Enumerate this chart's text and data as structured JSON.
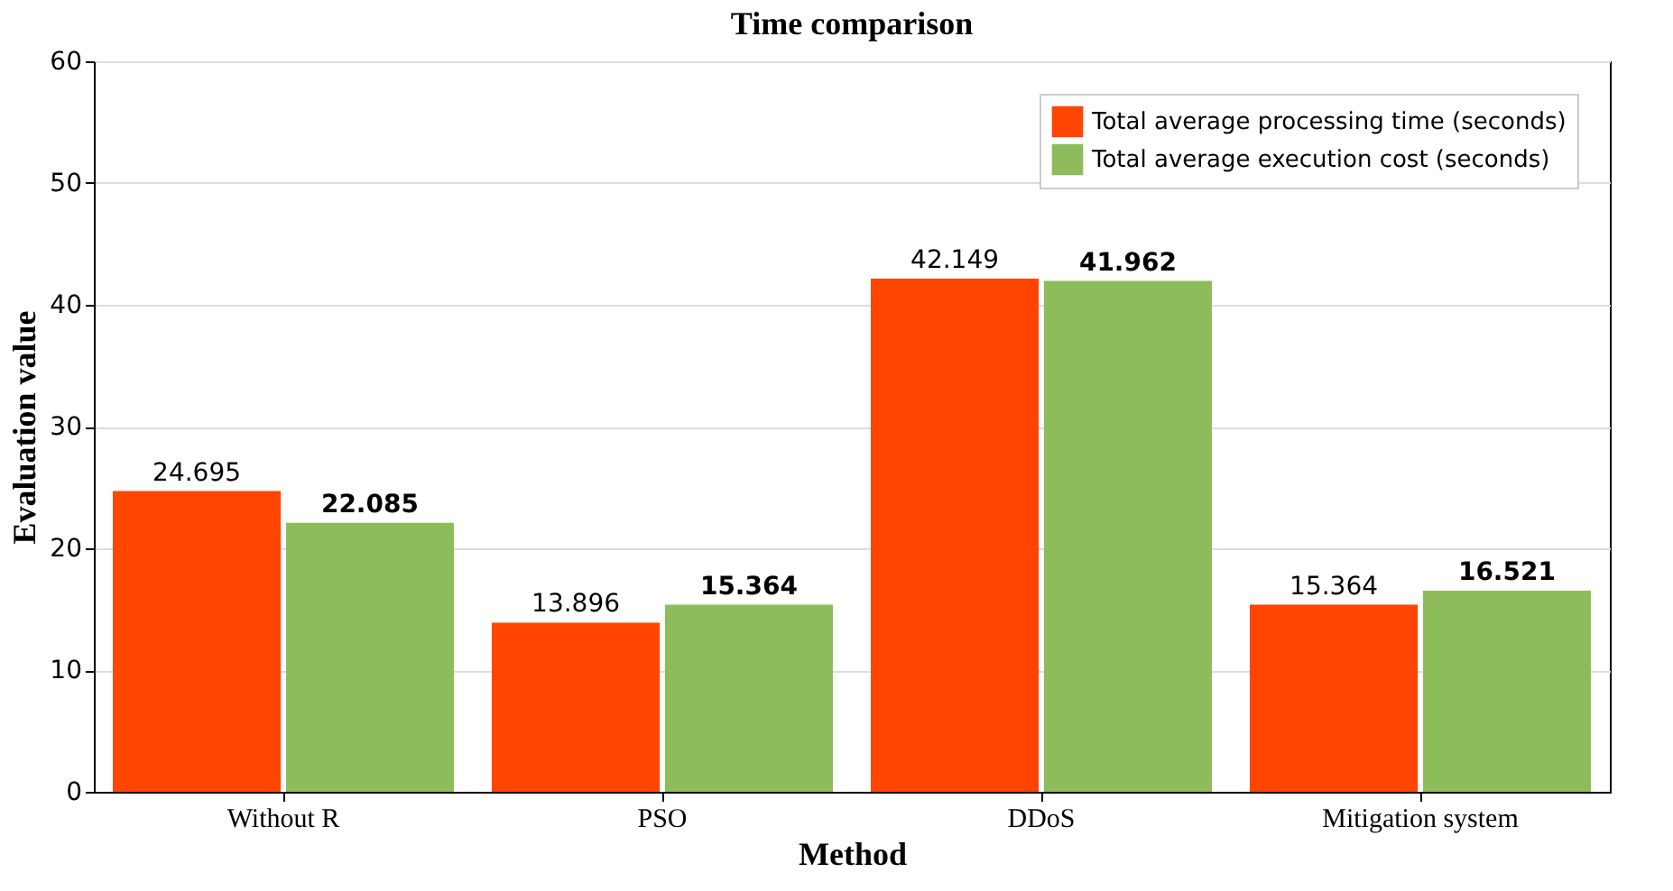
{
  "chart_data": {
    "type": "bar",
    "title": "Time comparison",
    "xlabel": "Method",
    "ylabel": "Evaluation value",
    "categories": [
      "Without R",
      "PSO",
      "DDoS",
      "Mitigation system"
    ],
    "series": [
      {
        "name": "Total average processing time (seconds)",
        "color": "#ff4500",
        "values": [
          24.695,
          13.896,
          42.149,
          15.364
        ]
      },
      {
        "name": "Total average execution cost (seconds)",
        "color": "#8fbc5a",
        "values": [
          22.085,
          15.364,
          41.962,
          16.521
        ]
      }
    ],
    "ylim": [
      0,
      60
    ],
    "yticks": [
      0,
      10,
      20,
      30,
      40,
      50,
      60
    ],
    "grid": "y",
    "legend": "top right",
    "data_labels": true
  }
}
